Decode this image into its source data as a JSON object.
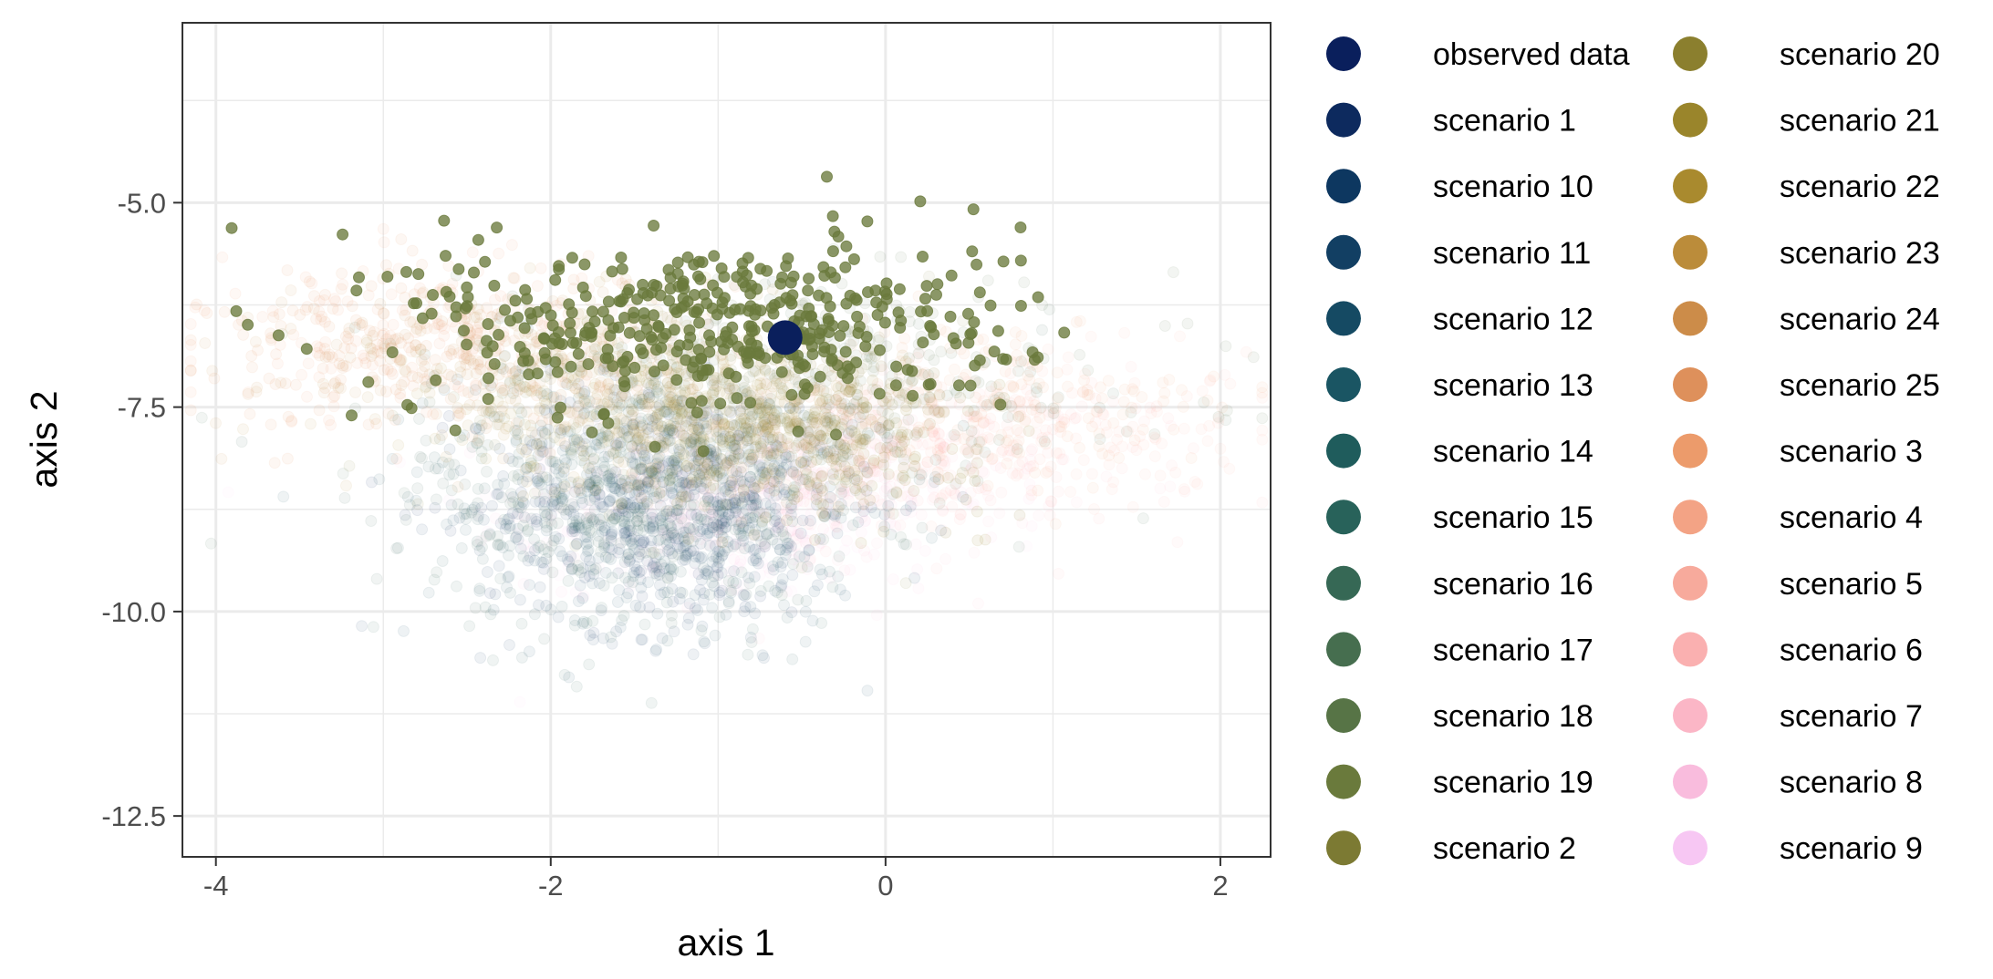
{
  "chart_data": {
    "type": "scatter",
    "xlabel": "axis 1",
    "ylabel": "axis 2",
    "xlim": [
      -4.2,
      2.3
    ],
    "ylim": [
      -13.0,
      -2.8
    ],
    "x_ticks": [
      -4,
      -2,
      0,
      2
    ],
    "y_ticks": [
      -12.5,
      -10.0,
      -7.5,
      -5.0
    ],
    "x_tick_labels": [
      "-4",
      "-2",
      "0",
      "2"
    ],
    "y_tick_labels": [
      "-12.5",
      "-10.0",
      "-7.5",
      "-5.0"
    ],
    "grid": true,
    "legend_position": "right",
    "observed_point": {
      "name": "observed data",
      "x": -0.6,
      "y": -6.65,
      "color": "#0a1f5c"
    },
    "series": [
      {
        "name": "scenario 1",
        "color": "#0d2a5e",
        "cx": -1.35,
        "cy": -8.6,
        "sx": 0.55,
        "sy": 0.75,
        "n": 180,
        "alpha": 0.07
      },
      {
        "name": "scenario 10",
        "color": "#0d3760",
        "cx": -1.3,
        "cy": -8.9,
        "sx": 0.55,
        "sy": 0.7,
        "n": 180,
        "alpha": 0.07
      },
      {
        "name": "scenario 11",
        "color": "#123f63",
        "cx": -1.2,
        "cy": -8.7,
        "sx": 0.6,
        "sy": 0.7,
        "n": 180,
        "alpha": 0.07
      },
      {
        "name": "scenario 12",
        "color": "#154a63",
        "cx": -1.25,
        "cy": -8.95,
        "sx": 0.55,
        "sy": 0.7,
        "n": 180,
        "alpha": 0.07
      },
      {
        "name": "scenario 13",
        "color": "#1a5563",
        "cx": -1.5,
        "cy": -8.4,
        "sx": 0.7,
        "sy": 0.8,
        "n": 180,
        "alpha": 0.07
      },
      {
        "name": "scenario 14",
        "color": "#1f5c5c",
        "cx": -1.4,
        "cy": -8.6,
        "sx": 0.65,
        "sy": 0.75,
        "n": 180,
        "alpha": 0.07
      },
      {
        "name": "scenario 15",
        "color": "#28625a",
        "cx": -1.45,
        "cy": -8.8,
        "sx": 0.6,
        "sy": 0.8,
        "n": 180,
        "alpha": 0.07
      },
      {
        "name": "scenario 16",
        "color": "#366855",
        "cx": -1.6,
        "cy": -8.3,
        "sx": 0.7,
        "sy": 0.8,
        "n": 180,
        "alpha": 0.07
      },
      {
        "name": "scenario 17",
        "color": "#466e4f",
        "cx": -1.0,
        "cy": -7.8,
        "sx": 1.0,
        "sy": 0.8,
        "n": 200,
        "alpha": 0.07
      },
      {
        "name": "scenario 18",
        "color": "#577446",
        "cx": -0.2,
        "cy": -7.2,
        "sx": 1.0,
        "sy": 0.6,
        "n": 220,
        "alpha": 0.07
      },
      {
        "name": "scenario 19",
        "color": "#6a7a3c",
        "cx": -1.0,
        "cy": -6.5,
        "sx": 0.9,
        "sy": 0.55,
        "n": 450,
        "alpha": 0.78
      },
      {
        "name": "scenario 2",
        "color": "#7c7a33",
        "cx": -1.2,
        "cy": -7.6,
        "sx": 0.8,
        "sy": 0.6,
        "n": 180,
        "alpha": 0.07
      },
      {
        "name": "scenario 20",
        "color": "#8b7f2e",
        "cx": -0.6,
        "cy": -7.7,
        "sx": 0.6,
        "sy": 0.45,
        "n": 200,
        "alpha": 0.09
      },
      {
        "name": "scenario 21",
        "color": "#9a852b",
        "cx": -0.5,
        "cy": -7.9,
        "sx": 0.55,
        "sy": 0.45,
        "n": 200,
        "alpha": 0.09
      },
      {
        "name": "scenario 22",
        "color": "#a98a2e",
        "cx": -1.3,
        "cy": -7.4,
        "sx": 0.6,
        "sy": 0.5,
        "n": 200,
        "alpha": 0.07
      },
      {
        "name": "scenario 23",
        "color": "#bb8c3a",
        "cx": -1.5,
        "cy": -7.3,
        "sx": 0.7,
        "sy": 0.5,
        "n": 200,
        "alpha": 0.07
      },
      {
        "name": "scenario 24",
        "color": "#cc8c49",
        "cx": -2.3,
        "cy": -6.9,
        "sx": 0.7,
        "sy": 0.5,
        "n": 200,
        "alpha": 0.07
      },
      {
        "name": "scenario 25",
        "color": "#de905b",
        "cx": -2.8,
        "cy": -6.8,
        "sx": 0.6,
        "sy": 0.5,
        "n": 200,
        "alpha": 0.07
      },
      {
        "name": "scenario 3",
        "color": "#ec9b6b",
        "cx": -2.5,
        "cy": -6.7,
        "sx": 0.8,
        "sy": 0.5,
        "n": 200,
        "alpha": 0.07
      },
      {
        "name": "scenario 4",
        "color": "#f3a385",
        "cx": 0.6,
        "cy": -7.5,
        "sx": 0.7,
        "sy": 0.5,
        "n": 200,
        "alpha": 0.07
      },
      {
        "name": "scenario 5",
        "color": "#f7aa9c",
        "cx": 0.8,
        "cy": -7.8,
        "sx": 0.7,
        "sy": 0.5,
        "n": 180,
        "alpha": 0.06
      },
      {
        "name": "scenario 6",
        "color": "#fab0b0",
        "cx": 0.3,
        "cy": -8.1,
        "sx": 0.8,
        "sy": 0.5,
        "n": 180,
        "alpha": 0.06
      },
      {
        "name": "scenario 7",
        "color": "#fbb6c6",
        "cx": -0.4,
        "cy": -8.4,
        "sx": 0.7,
        "sy": 0.5,
        "n": 180,
        "alpha": 0.06
      },
      {
        "name": "scenario 8",
        "color": "#f9bcdd",
        "cx": -0.7,
        "cy": -8.6,
        "sx": 0.7,
        "sy": 0.55,
        "n": 180,
        "alpha": 0.06
      },
      {
        "name": "scenario 9",
        "color": "#f7c7f3",
        "cx": -1.1,
        "cy": -8.8,
        "sx": 0.7,
        "sy": 0.55,
        "n": 180,
        "alpha": 0.05
      }
    ],
    "legend_items": [
      {
        "label": "observed data",
        "color": "#0a1f5c"
      },
      {
        "label": "scenario 1",
        "color": "#0d2a5e"
      },
      {
        "label": "scenario 10",
        "color": "#0d3760"
      },
      {
        "label": "scenario 11",
        "color": "#123f63"
      },
      {
        "label": "scenario 12",
        "color": "#154a63"
      },
      {
        "label": "scenario 13",
        "color": "#1a5563"
      },
      {
        "label": "scenario 14",
        "color": "#1f5c5c"
      },
      {
        "label": "scenario 15",
        "color": "#28625a"
      },
      {
        "label": "scenario 16",
        "color": "#366855"
      },
      {
        "label": "scenario 17",
        "color": "#466e4f"
      },
      {
        "label": "scenario 18",
        "color": "#577446"
      },
      {
        "label": "scenario 19",
        "color": "#6a7a3c"
      },
      {
        "label": "scenario 2",
        "color": "#7c7a33"
      },
      {
        "label": "scenario 20",
        "color": "#8b7f2e"
      },
      {
        "label": "scenario 21",
        "color": "#9a852b"
      },
      {
        "label": "scenario 22",
        "color": "#a98a2e"
      },
      {
        "label": "scenario 23",
        "color": "#bb8c3a"
      },
      {
        "label": "scenario 24",
        "color": "#cc8c49"
      },
      {
        "label": "scenario 25",
        "color": "#de905b"
      },
      {
        "label": "scenario 3",
        "color": "#ec9b6b"
      },
      {
        "label": "scenario 4",
        "color": "#f3a385"
      },
      {
        "label": "scenario 5",
        "color": "#f7aa9c"
      },
      {
        "label": "scenario 6",
        "color": "#fab0b0"
      },
      {
        "label": "scenario 7",
        "color": "#fbb6c6"
      },
      {
        "label": "scenario 8",
        "color": "#f9bcdd"
      },
      {
        "label": "scenario 9",
        "color": "#f7c7f3"
      }
    ]
  }
}
